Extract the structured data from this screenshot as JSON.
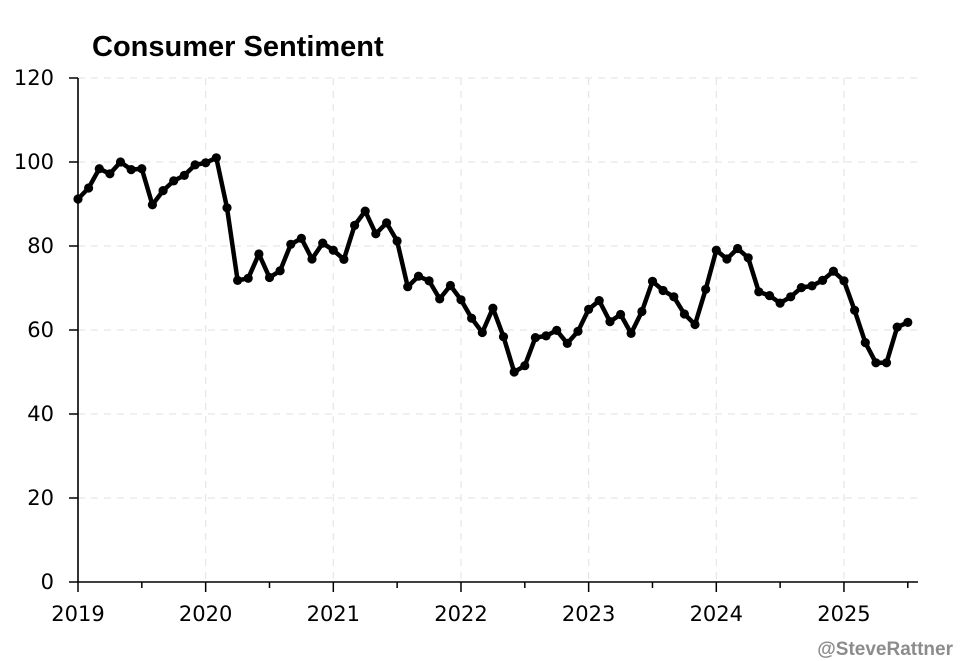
{
  "chart_data": {
    "type": "line",
    "title": "Consumer Sentiment",
    "xlabel": "",
    "ylabel": "",
    "ylim": [
      0,
      120
    ],
    "xlim": [
      2019.0,
      2025.58
    ],
    "y_ticks": [
      "0",
      "20",
      "40",
      "60",
      "80",
      "100",
      "120"
    ],
    "x_ticks": [
      "2019",
      "2020",
      "2021",
      "2022",
      "2023",
      "2024",
      "2025"
    ],
    "grid": true,
    "legend": "none",
    "series": [
      {
        "name": "Consumer Sentiment",
        "color": "#000000",
        "x": [
          2019.0,
          2019.083,
          2019.167,
          2019.25,
          2019.333,
          2019.417,
          2019.5,
          2019.583,
          2019.667,
          2019.75,
          2019.833,
          2019.917,
          2020.0,
          2020.083,
          2020.167,
          2020.25,
          2020.333,
          2020.417,
          2020.5,
          2020.583,
          2020.667,
          2020.75,
          2020.833,
          2020.917,
          2021.0,
          2021.083,
          2021.167,
          2021.25,
          2021.333,
          2021.417,
          2021.5,
          2021.583,
          2021.667,
          2021.75,
          2021.833,
          2021.917,
          2022.0,
          2022.083,
          2022.167,
          2022.25,
          2022.333,
          2022.417,
          2022.5,
          2022.583,
          2022.667,
          2022.75,
          2022.833,
          2022.917,
          2023.0,
          2023.083,
          2023.167,
          2023.25,
          2023.333,
          2023.417,
          2023.5,
          2023.583,
          2023.667,
          2023.75,
          2023.833,
          2023.917,
          2024.0,
          2024.083,
          2024.167,
          2024.25,
          2024.333,
          2024.417,
          2024.5,
          2024.583,
          2024.667,
          2024.75,
          2024.833,
          2024.917,
          2025.0,
          2025.083,
          2025.167,
          2025.25,
          2025.333,
          2025.417,
          2025.5
        ],
        "values": [
          91.2,
          93.8,
          98.4,
          97.2,
          100.0,
          98.2,
          98.4,
          89.8,
          93.2,
          95.5,
          96.8,
          99.3,
          99.8,
          101.0,
          89.1,
          71.8,
          72.3,
          78.1,
          72.5,
          74.1,
          80.4,
          81.8,
          76.9,
          80.7,
          79.0,
          76.8,
          84.9,
          88.3,
          82.9,
          85.5,
          81.2,
          70.3,
          72.8,
          71.7,
          67.4,
          70.6,
          67.2,
          62.8,
          59.4,
          65.2,
          58.4,
          50.0,
          51.5,
          58.2,
          58.6,
          59.9,
          56.8,
          59.7,
          64.9,
          67.0,
          62.0,
          63.7,
          59.2,
          64.4,
          71.6,
          69.4,
          67.9,
          63.8,
          61.3,
          69.7,
          79.0,
          76.9,
          79.4,
          77.2,
          69.1,
          68.2,
          66.4,
          67.9,
          70.1,
          70.5,
          71.8,
          74.0,
          71.7,
          64.7,
          57.0,
          52.2,
          52.2,
          60.7,
          61.8
        ]
      }
    ]
  },
  "watermark": "@SteveRattner"
}
